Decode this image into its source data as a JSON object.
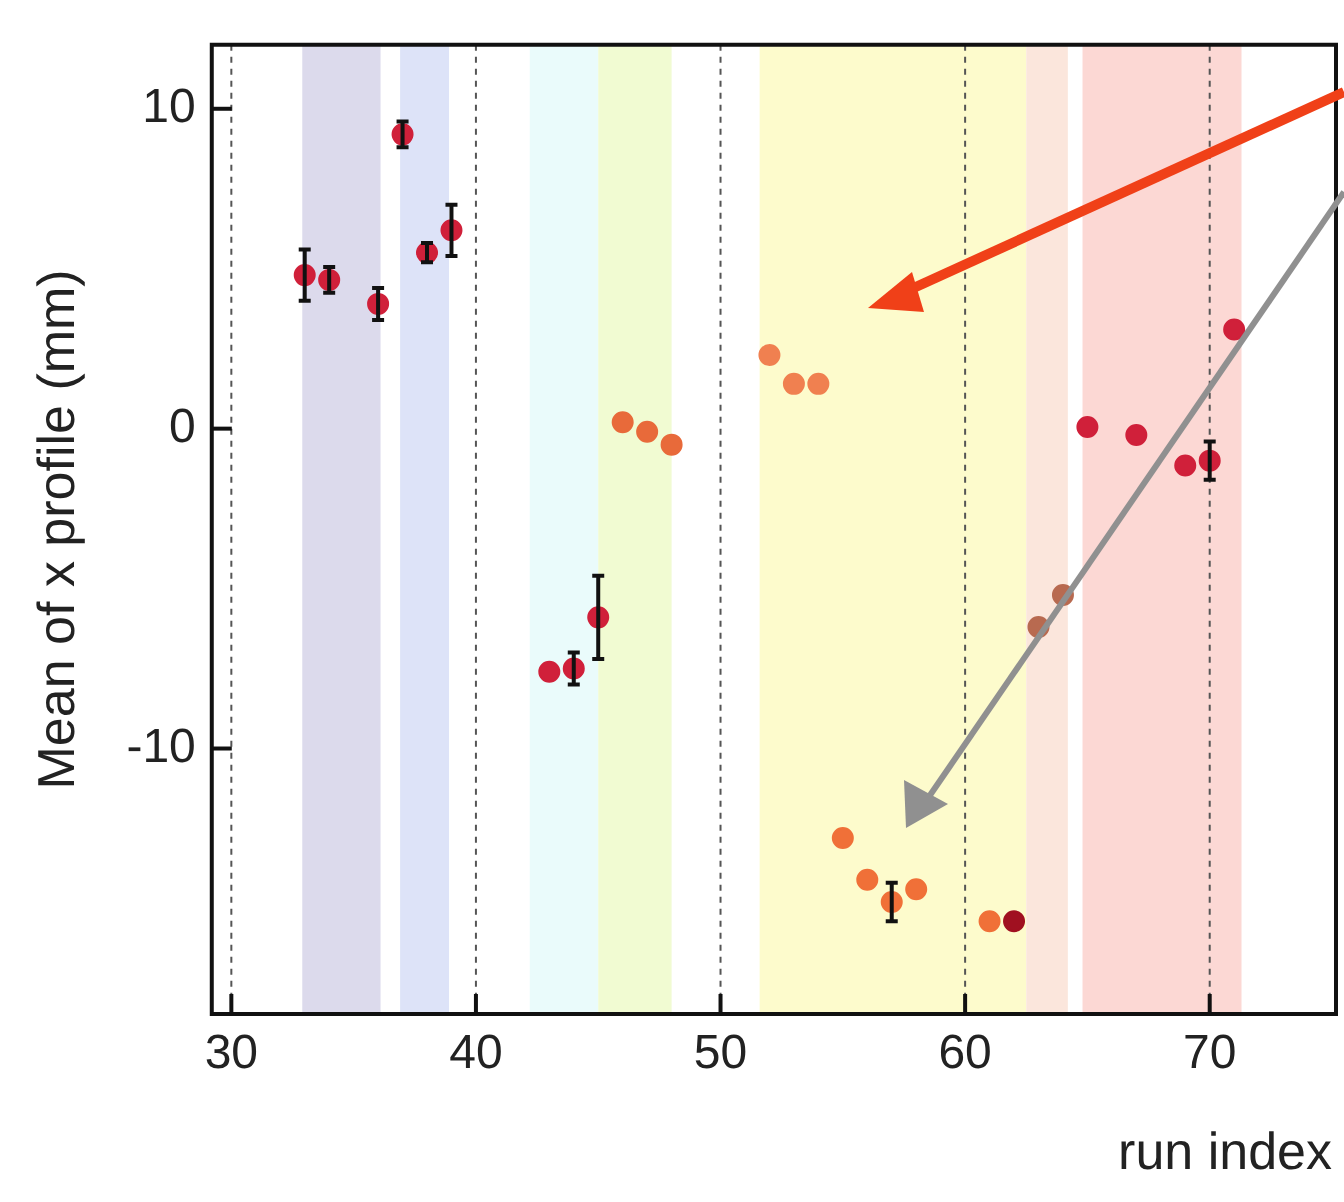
{
  "chart_data": {
    "type": "scatter",
    "xlabel": "run index",
    "ylabel": "Mean of x profile (mm)",
    "xlim": [
      29.2,
      75
    ],
    "ylim": [
      -18.3,
      12
    ],
    "xticks": [
      30,
      40,
      50,
      60,
      70
    ],
    "yticks": [
      -10,
      0,
      10
    ],
    "grid": "x",
    "marker": "circle",
    "x": [
      33,
      34,
      36,
      37,
      38,
      39,
      43,
      44,
      45,
      46,
      47,
      48,
      52,
      53,
      54,
      55,
      56,
      57,
      58,
      61,
      62,
      63,
      64,
      65,
      67,
      69,
      70,
      71
    ],
    "values": [
      4.8,
      4.65,
      3.9,
      9.2,
      5.5,
      6.2,
      -7.6,
      -7.5,
      -5.9,
      0.2,
      -0.1,
      -0.5,
      2.3,
      1.4,
      1.4,
      -12.8,
      -14.1,
      -14.8,
      -14.4,
      -15.4,
      -15.4,
      -6.2,
      -5.2,
      0.05,
      -0.2,
      -1.15,
      -1.0,
      3.1
    ],
    "colors": [
      "#d0203a",
      "#d0203a",
      "#d0203a",
      "#d0203a",
      "#d0203a",
      "#d0203a",
      "#d0203a",
      "#d0203a",
      "#d0203a",
      "#e86a3a",
      "#e86a3a",
      "#e86a3a",
      "#f08050",
      "#f08050",
      "#f08050",
      "#f07038",
      "#f07038",
      "#f07038",
      "#f07038",
      "#f07038",
      "#a01020",
      "#b86a50",
      "#b86a50",
      "#d0203a",
      "#d0203a",
      "#d0203a",
      "#d0203a",
      "#d0203a"
    ],
    "errors": [
      0.8,
      0.4,
      0.5,
      0.4,
      0.3,
      0.8,
      null,
      0.5,
      1.3,
      null,
      null,
      null,
      null,
      null,
      null,
      null,
      null,
      0.6,
      null,
      null,
      null,
      null,
      null,
      null,
      null,
      null,
      0.6,
      null
    ],
    "bands": [
      {
        "axis": "x",
        "from": 32.9,
        "to": 36.1,
        "color": "#dcdaec"
      },
      {
        "axis": "x",
        "from": 36.9,
        "to": 38.9,
        "color": "#dde3f8"
      },
      {
        "axis": "x",
        "from": 42.2,
        "to": 45,
        "color": "#eafbfb"
      },
      {
        "axis": "x",
        "from": 45,
        "to": 48,
        "color": "#f1fbd2"
      },
      {
        "axis": "x",
        "from": 51.6,
        "to": 62.5,
        "color": "#fdfbcc"
      },
      {
        "axis": "x",
        "from": 62.5,
        "to": 64.2,
        "color": "#fbe6dc"
      },
      {
        "axis": "x",
        "from": 64.8,
        "to": 71.3,
        "color": "#fcd8d4"
      }
    ]
  }
}
